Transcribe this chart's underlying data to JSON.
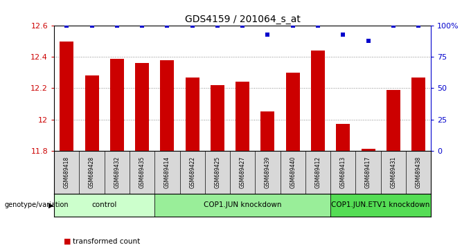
{
  "title": "GDS4159 / 201064_s_at",
  "samples": [
    "GSM689418",
    "GSM689428",
    "GSM689432",
    "GSM689435",
    "GSM689414",
    "GSM689422",
    "GSM689425",
    "GSM689427",
    "GSM689439",
    "GSM689440",
    "GSM689412",
    "GSM689413",
    "GSM689417",
    "GSM689431",
    "GSM689438"
  ],
  "bar_values": [
    12.5,
    12.28,
    12.39,
    12.36,
    12.38,
    12.27,
    12.22,
    12.24,
    12.05,
    12.3,
    12.44,
    11.97,
    11.81,
    12.19,
    12.27
  ],
  "percentile_values": [
    100,
    100,
    100,
    100,
    100,
    100,
    100,
    100,
    93,
    100,
    100,
    93,
    88,
    100,
    100
  ],
  "groups": [
    {
      "label": "control",
      "start": 0,
      "end": 4,
      "color": "#ccffcc"
    },
    {
      "label": "COP1.JUN knockdown",
      "start": 4,
      "end": 11,
      "color": "#99ee99"
    },
    {
      "label": "COP1.JUN.ETV1 knockdown",
      "start": 11,
      "end": 15,
      "color": "#55dd55"
    }
  ],
  "bar_color": "#cc0000",
  "percentile_color": "#0000cc",
  "ylim_left": [
    11.8,
    12.6
  ],
  "ylim_right": [
    0,
    100
  ],
  "yticks_left": [
    11.8,
    12.0,
    12.2,
    12.4,
    12.6
  ],
  "ytick_labels_left": [
    "11.8",
    "12",
    "12.2",
    "12.4",
    "12.6"
  ],
  "yticks_right": [
    0,
    25,
    50,
    75,
    100
  ],
  "ytick_labels_right": [
    "0",
    "25",
    "50",
    "75",
    "100%"
  ],
  "bar_width": 0.55,
  "background_color": "#ffffff",
  "grid_color": "#888888",
  "sample_bg_color": "#d8d8d8"
}
